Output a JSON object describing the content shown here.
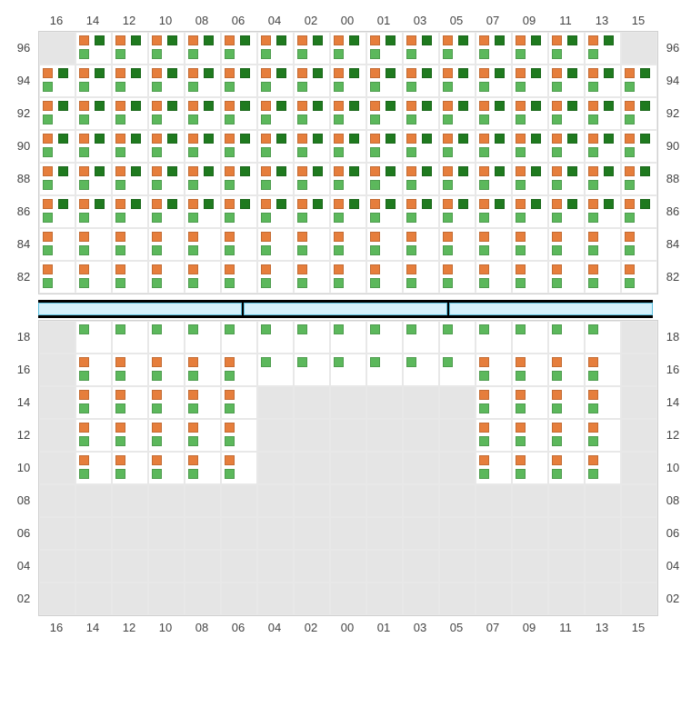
{
  "columns": [
    "16",
    "14",
    "12",
    "10",
    "08",
    "06",
    "04",
    "02",
    "00",
    "01",
    "03",
    "05",
    "07",
    "09",
    "11",
    "13",
    "15"
  ],
  "colors": {
    "orange": "#e67e3c",
    "dark_green": "#1f7a1f",
    "light_green": "#5cb85c",
    "empty_bg": "#e5e5e5",
    "active_bg": "#ffffff",
    "grid_line": "#e8e8e8",
    "divider_bg": "#000000",
    "divider_seg": "#d4f0fb",
    "divider_border": "#5bc0de",
    "text": "#444444"
  },
  "top_section": {
    "rows": [
      "96",
      "94",
      "92",
      "90",
      "88",
      "86",
      "84",
      "82"
    ],
    "cells": {
      "96": [
        {
          "type": "empty"
        },
        {
          "type": "A"
        },
        {
          "type": "A"
        },
        {
          "type": "A"
        },
        {
          "type": "A"
        },
        {
          "type": "A"
        },
        {
          "type": "A"
        },
        {
          "type": "A"
        },
        {
          "type": "A"
        },
        {
          "type": "A"
        },
        {
          "type": "A"
        },
        {
          "type": "A"
        },
        {
          "type": "A"
        },
        {
          "type": "A"
        },
        {
          "type": "A"
        },
        {
          "type": "A"
        },
        {
          "type": "empty"
        }
      ],
      "94": [
        {
          "type": "A"
        },
        {
          "type": "A"
        },
        {
          "type": "A"
        },
        {
          "type": "A"
        },
        {
          "type": "A"
        },
        {
          "type": "A"
        },
        {
          "type": "A"
        },
        {
          "type": "A"
        },
        {
          "type": "A"
        },
        {
          "type": "A"
        },
        {
          "type": "A"
        },
        {
          "type": "A"
        },
        {
          "type": "A"
        },
        {
          "type": "A"
        },
        {
          "type": "A"
        },
        {
          "type": "A"
        },
        {
          "type": "A"
        }
      ],
      "92": [
        {
          "type": "A"
        },
        {
          "type": "A"
        },
        {
          "type": "A"
        },
        {
          "type": "A"
        },
        {
          "type": "A"
        },
        {
          "type": "A"
        },
        {
          "type": "A"
        },
        {
          "type": "A"
        },
        {
          "type": "A"
        },
        {
          "type": "A"
        },
        {
          "type": "A"
        },
        {
          "type": "A"
        },
        {
          "type": "A"
        },
        {
          "type": "A"
        },
        {
          "type": "A"
        },
        {
          "type": "A"
        },
        {
          "type": "A"
        }
      ],
      "90": [
        {
          "type": "A"
        },
        {
          "type": "A"
        },
        {
          "type": "A"
        },
        {
          "type": "A"
        },
        {
          "type": "A"
        },
        {
          "type": "A"
        },
        {
          "type": "A"
        },
        {
          "type": "A"
        },
        {
          "type": "A"
        },
        {
          "type": "A"
        },
        {
          "type": "A"
        },
        {
          "type": "A"
        },
        {
          "type": "A"
        },
        {
          "type": "A"
        },
        {
          "type": "A"
        },
        {
          "type": "A"
        },
        {
          "type": "A"
        }
      ],
      "88": [
        {
          "type": "A"
        },
        {
          "type": "A"
        },
        {
          "type": "A"
        },
        {
          "type": "A"
        },
        {
          "type": "A"
        },
        {
          "type": "A"
        },
        {
          "type": "A"
        },
        {
          "type": "A"
        },
        {
          "type": "A"
        },
        {
          "type": "A"
        },
        {
          "type": "A"
        },
        {
          "type": "A"
        },
        {
          "type": "A"
        },
        {
          "type": "A"
        },
        {
          "type": "A"
        },
        {
          "type": "A"
        },
        {
          "type": "A"
        }
      ],
      "86": [
        {
          "type": "A"
        },
        {
          "type": "A"
        },
        {
          "type": "A"
        },
        {
          "type": "A"
        },
        {
          "type": "A"
        },
        {
          "type": "A"
        },
        {
          "type": "A"
        },
        {
          "type": "A"
        },
        {
          "type": "A"
        },
        {
          "type": "A"
        },
        {
          "type": "A"
        },
        {
          "type": "A"
        },
        {
          "type": "A"
        },
        {
          "type": "A"
        },
        {
          "type": "A"
        },
        {
          "type": "A"
        },
        {
          "type": "A"
        }
      ],
      "84": [
        {
          "type": "B"
        },
        {
          "type": "B"
        },
        {
          "type": "B"
        },
        {
          "type": "B"
        },
        {
          "type": "B"
        },
        {
          "type": "B"
        },
        {
          "type": "B"
        },
        {
          "type": "B"
        },
        {
          "type": "B"
        },
        {
          "type": "B"
        },
        {
          "type": "B"
        },
        {
          "type": "B"
        },
        {
          "type": "B"
        },
        {
          "type": "B"
        },
        {
          "type": "B"
        },
        {
          "type": "B"
        },
        {
          "type": "B"
        }
      ],
      "82": [
        {
          "type": "B"
        },
        {
          "type": "B"
        },
        {
          "type": "B"
        },
        {
          "type": "B"
        },
        {
          "type": "B"
        },
        {
          "type": "B"
        },
        {
          "type": "B"
        },
        {
          "type": "B"
        },
        {
          "type": "B"
        },
        {
          "type": "B"
        },
        {
          "type": "B"
        },
        {
          "type": "B"
        },
        {
          "type": "B"
        },
        {
          "type": "B"
        },
        {
          "type": "B"
        },
        {
          "type": "B"
        },
        {
          "type": "B"
        }
      ]
    }
  },
  "divider_segments": 3,
  "bottom_section": {
    "rows": [
      "18",
      "16",
      "14",
      "12",
      "10",
      "08",
      "06",
      "04",
      "02"
    ],
    "cells": {
      "18": [
        {
          "type": "empty"
        },
        {
          "type": "G"
        },
        {
          "type": "G"
        },
        {
          "type": "G"
        },
        {
          "type": "G"
        },
        {
          "type": "G"
        },
        {
          "type": "G"
        },
        {
          "type": "G"
        },
        {
          "type": "G"
        },
        {
          "type": "G"
        },
        {
          "type": "G"
        },
        {
          "type": "G"
        },
        {
          "type": "G"
        },
        {
          "type": "G"
        },
        {
          "type": "G"
        },
        {
          "type": "G"
        },
        {
          "type": "empty"
        }
      ],
      "16": [
        {
          "type": "empty"
        },
        {
          "type": "B"
        },
        {
          "type": "B"
        },
        {
          "type": "B"
        },
        {
          "type": "B"
        },
        {
          "type": "B"
        },
        {
          "type": "G"
        },
        {
          "type": "G"
        },
        {
          "type": "G"
        },
        {
          "type": "G"
        },
        {
          "type": "G"
        },
        {
          "type": "G"
        },
        {
          "type": "B"
        },
        {
          "type": "B"
        },
        {
          "type": "B"
        },
        {
          "type": "B"
        },
        {
          "type": "empty"
        }
      ],
      "14": [
        {
          "type": "empty"
        },
        {
          "type": "B"
        },
        {
          "type": "B"
        },
        {
          "type": "B"
        },
        {
          "type": "B"
        },
        {
          "type": "B"
        },
        {
          "type": "empty"
        },
        {
          "type": "empty"
        },
        {
          "type": "empty"
        },
        {
          "type": "empty"
        },
        {
          "type": "empty"
        },
        {
          "type": "empty"
        },
        {
          "type": "B"
        },
        {
          "type": "B"
        },
        {
          "type": "B"
        },
        {
          "type": "B"
        },
        {
          "type": "empty"
        }
      ],
      "12": [
        {
          "type": "empty"
        },
        {
          "type": "B"
        },
        {
          "type": "B"
        },
        {
          "type": "B"
        },
        {
          "type": "B"
        },
        {
          "type": "B"
        },
        {
          "type": "empty"
        },
        {
          "type": "empty"
        },
        {
          "type": "empty"
        },
        {
          "type": "empty"
        },
        {
          "type": "empty"
        },
        {
          "type": "empty"
        },
        {
          "type": "B"
        },
        {
          "type": "B"
        },
        {
          "type": "B"
        },
        {
          "type": "B"
        },
        {
          "type": "empty"
        }
      ],
      "10": [
        {
          "type": "empty"
        },
        {
          "type": "B"
        },
        {
          "type": "B"
        },
        {
          "type": "B"
        },
        {
          "type": "B"
        },
        {
          "type": "B"
        },
        {
          "type": "empty"
        },
        {
          "type": "empty"
        },
        {
          "type": "empty"
        },
        {
          "type": "empty"
        },
        {
          "type": "empty"
        },
        {
          "type": "empty"
        },
        {
          "type": "B"
        },
        {
          "type": "B"
        },
        {
          "type": "B"
        },
        {
          "type": "B"
        },
        {
          "type": "empty"
        }
      ],
      "08": [
        {
          "type": "empty"
        },
        {
          "type": "empty"
        },
        {
          "type": "empty"
        },
        {
          "type": "empty"
        },
        {
          "type": "empty"
        },
        {
          "type": "empty"
        },
        {
          "type": "empty"
        },
        {
          "type": "empty"
        },
        {
          "type": "empty"
        },
        {
          "type": "empty"
        },
        {
          "type": "empty"
        },
        {
          "type": "empty"
        },
        {
          "type": "empty"
        },
        {
          "type": "empty"
        },
        {
          "type": "empty"
        },
        {
          "type": "empty"
        },
        {
          "type": "empty"
        }
      ],
      "06": [
        {
          "type": "empty"
        },
        {
          "type": "empty"
        },
        {
          "type": "empty"
        },
        {
          "type": "empty"
        },
        {
          "type": "empty"
        },
        {
          "type": "empty"
        },
        {
          "type": "empty"
        },
        {
          "type": "empty"
        },
        {
          "type": "empty"
        },
        {
          "type": "empty"
        },
        {
          "type": "empty"
        },
        {
          "type": "empty"
        },
        {
          "type": "empty"
        },
        {
          "type": "empty"
        },
        {
          "type": "empty"
        },
        {
          "type": "empty"
        },
        {
          "type": "empty"
        }
      ],
      "04": [
        {
          "type": "empty"
        },
        {
          "type": "empty"
        },
        {
          "type": "empty"
        },
        {
          "type": "empty"
        },
        {
          "type": "empty"
        },
        {
          "type": "empty"
        },
        {
          "type": "empty"
        },
        {
          "type": "empty"
        },
        {
          "type": "empty"
        },
        {
          "type": "empty"
        },
        {
          "type": "empty"
        },
        {
          "type": "empty"
        },
        {
          "type": "empty"
        },
        {
          "type": "empty"
        },
        {
          "type": "empty"
        },
        {
          "type": "empty"
        },
        {
          "type": "empty"
        }
      ],
      "02": [
        {
          "type": "empty"
        },
        {
          "type": "empty"
        },
        {
          "type": "empty"
        },
        {
          "type": "empty"
        },
        {
          "type": "empty"
        },
        {
          "type": "empty"
        },
        {
          "type": "empty"
        },
        {
          "type": "empty"
        },
        {
          "type": "empty"
        },
        {
          "type": "empty"
        },
        {
          "type": "empty"
        },
        {
          "type": "empty"
        },
        {
          "type": "empty"
        },
        {
          "type": "empty"
        },
        {
          "type": "empty"
        },
        {
          "type": "empty"
        },
        {
          "type": "empty"
        }
      ]
    }
  },
  "marker_patterns": {
    "A": [
      "orange",
      "dark_green",
      "light_green",
      "blank"
    ],
    "B": [
      "orange",
      "blank",
      "light_green",
      "blank"
    ],
    "G": [
      "light_green",
      "blank",
      "blank",
      "blank"
    ]
  }
}
